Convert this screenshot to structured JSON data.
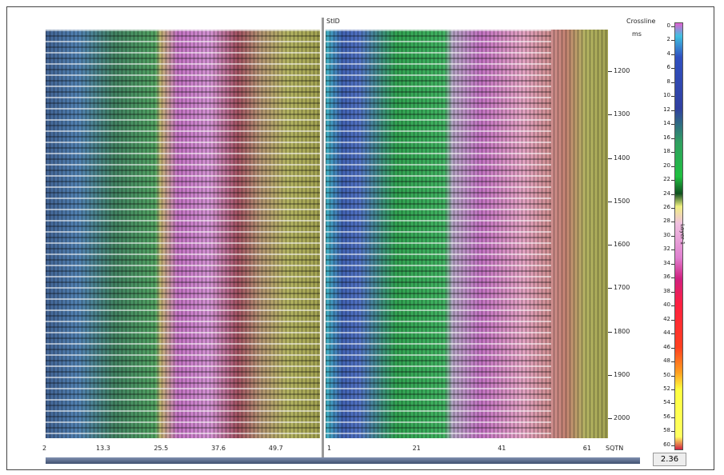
{
  "header": {
    "left_label": "StID",
    "right_label": "Crossline",
    "unit": "ms"
  },
  "left_panel": {
    "xticks": [
      2,
      13.3,
      25.5,
      37.6,
      49.7
    ]
  },
  "right_panel": {
    "xticks": [
      1,
      21,
      41,
      61
    ],
    "axis_name": "SQTN"
  },
  "yticks": [
    1200,
    1300,
    1400,
    1500,
    1600,
    1700,
    1800,
    1900,
    2000
  ],
  "colorbar": {
    "ticks": [
      0,
      2,
      4,
      6,
      8,
      10,
      12,
      14,
      16,
      18,
      20,
      22,
      24,
      26,
      28,
      30,
      32,
      34,
      36,
      38,
      40,
      42,
      44,
      46,
      48,
      50,
      52,
      54,
      56,
      58,
      60
    ],
    "label": "Layer 1",
    "value": "2.36"
  }
}
